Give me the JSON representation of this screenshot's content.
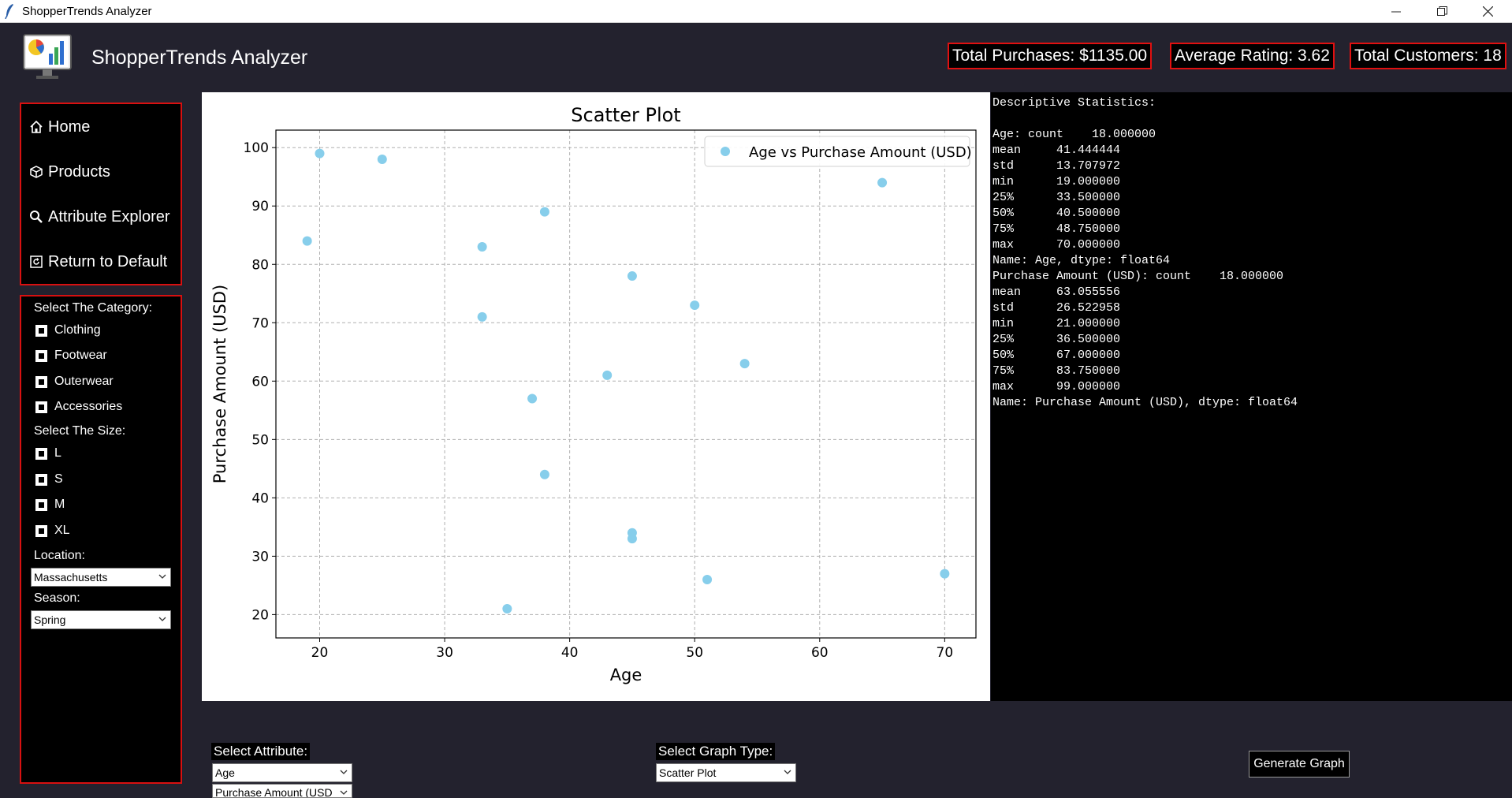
{
  "window": {
    "title": "ShopperTrends Analyzer"
  },
  "header": {
    "app_name": "ShopperTrends Analyzer",
    "total_purchases": "Total Purchases: $1135.00",
    "average_rating": "Average Rating: 3.62",
    "total_customers": "Total Customers: 18"
  },
  "nav": {
    "items": [
      {
        "label": "Home",
        "icon": "home-icon"
      },
      {
        "label": "Products",
        "icon": "box-icon"
      },
      {
        "label": "Attribute Explorer",
        "icon": "magnifier-icon"
      },
      {
        "label": "Return to Default",
        "icon": "reset-icon"
      }
    ]
  },
  "filters": {
    "category_label": "Select The Category:",
    "categories": [
      "Clothing",
      "Footwear",
      "Outerwear",
      "Accessories"
    ],
    "size_label": "Select The Size:",
    "sizes": [
      "L",
      "S",
      "M",
      "XL"
    ],
    "location_label": "Location:",
    "location_value": "Massachusetts",
    "season_label": "Season:",
    "season_value": "Spring"
  },
  "chart_data": {
    "type": "scatter",
    "title": "Scatter Plot",
    "xlabel": "Age",
    "ylabel": "Purchase Amount (USD)",
    "legend": "Age vs Purchase Amount (USD)",
    "legend_position": "top-right",
    "grid": true,
    "xlim": [
      16.5,
      72.5
    ],
    "ylim": [
      16,
      103
    ],
    "xticks": [
      20,
      30,
      40,
      50,
      60,
      70
    ],
    "yticks": [
      20,
      30,
      40,
      50,
      60,
      70,
      80,
      90,
      100
    ],
    "color": "#87ceeb",
    "points": [
      [
        19,
        84
      ],
      [
        20,
        99
      ],
      [
        25,
        98
      ],
      [
        33,
        83
      ],
      [
        33,
        71
      ],
      [
        35,
        21
      ],
      [
        37,
        57
      ],
      [
        38,
        89
      ],
      [
        38,
        44
      ],
      [
        43,
        61
      ],
      [
        45,
        78
      ],
      [
        45,
        34
      ],
      [
        45,
        33
      ],
      [
        50,
        73
      ],
      [
        51,
        26
      ],
      [
        54,
        63
      ],
      [
        65,
        94
      ],
      [
        70,
        27
      ]
    ]
  },
  "stats": {
    "text": "Descriptive Statistics:\n\nAge: count    18.000000\nmean     41.444444\nstd      13.707972\nmin      19.000000\n25%      33.500000\n50%      40.500000\n75%      48.750000\nmax      70.000000\nName: Age, dtype: float64\nPurchase Amount (USD): count    18.000000\nmean     63.055556\nstd      26.522958\nmin      21.000000\n25%      36.500000\n50%      67.000000\n75%      83.750000\nmax      99.000000\nName: Purchase Amount (USD), dtype: float64"
  },
  "bottom": {
    "attribute_label": "Select Attribute:",
    "attribute_value_1": "Age",
    "attribute_value_2": "Purchase Amount (USD",
    "graph_type_label": "Select Graph Type:",
    "graph_type_value": "Scatter Plot",
    "generate_button": "Generate Graph"
  },
  "colors": {
    "accent_border": "#e01010",
    "point": "#87ceeb",
    "background": "#23222e"
  }
}
